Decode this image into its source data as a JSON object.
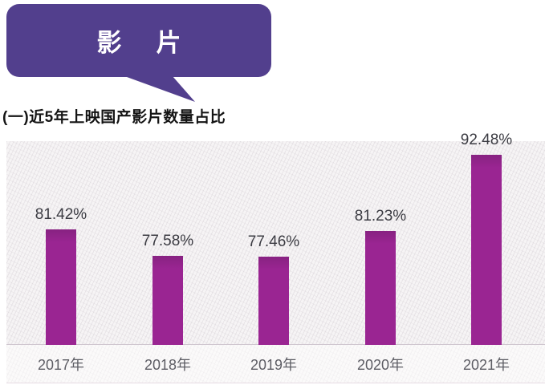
{
  "banner": {
    "label": "影　片"
  },
  "heading": {
    "text": "(一)近5年上映国产影片数量占比"
  },
  "chart_data": {
    "type": "bar",
    "title": "(一)近5年上映国产影片数量占比",
    "categories": [
      "2017年",
      "2018年",
      "2019年",
      "2020年",
      "2021年"
    ],
    "values": [
      81.42,
      77.58,
      77.46,
      81.23,
      92.48
    ],
    "value_labels": [
      "81.42%",
      "77.58%",
      "77.46%",
      "81.23%",
      "92.48%"
    ],
    "xlabel": "",
    "ylabel": "",
    "ylim": [
      64.5,
      95.5
    ],
    "grid": false,
    "legend": "none",
    "bar_color": "#9A2592",
    "background": "textured-light-gray"
  },
  "colors": {
    "banner_bg": "#523F8D",
    "banner_text": "#FFFFFF",
    "bar": "#9A2592",
    "bar_top_shade": "#872281",
    "value_label": "#3B3B42",
    "axis_label": "#5D5D64",
    "baseline": "#CFC6CF",
    "chart_bg": "#F6F4F5"
  }
}
